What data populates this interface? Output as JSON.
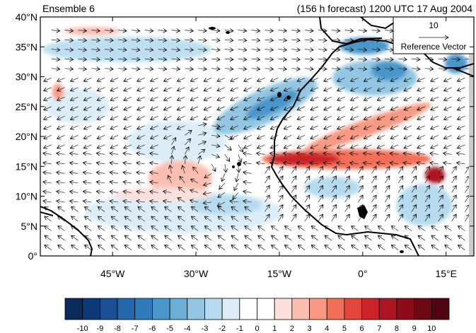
{
  "header": {
    "left_title": "Ensemble 6",
    "right_title": "(156 h forecast) 1200 UTC 17 Aug 2004"
  },
  "reference_vector": {
    "magnitude_label": "10",
    "caption": "Reference Vector"
  },
  "map": {
    "lon_range": [
      -58,
      20
    ],
    "lat_range": [
      0,
      40
    ],
    "lat_ticks": [
      {
        "value": 0,
        "label": "0°"
      },
      {
        "value": 5,
        "label": "5°N"
      },
      {
        "value": 10,
        "label": "10°N"
      },
      {
        "value": 15,
        "label": "15°N"
      },
      {
        "value": 20,
        "label": "20°N"
      },
      {
        "value": 25,
        "label": "25°N"
      },
      {
        "value": 30,
        "label": "30°N"
      },
      {
        "value": 35,
        "label": "35°N"
      },
      {
        "value": 40,
        "label": "40°N"
      }
    ],
    "lon_ticks": [
      {
        "value": -45,
        "label": "45°W"
      },
      {
        "value": -30,
        "label": "30°W"
      },
      {
        "value": -15,
        "label": "15°W"
      },
      {
        "value": 0,
        "label": "0°"
      },
      {
        "value": 15,
        "label": "15°E"
      }
    ],
    "features": [
      {
        "name": "warm-anomaly-saharan-band",
        "lon": -7,
        "lat": 17,
        "value": 8
      },
      {
        "name": "warm-anomaly-east-peak",
        "lon": 12,
        "lat": 14,
        "value": 10
      },
      {
        "name": "warm-anomaly-eastern-atlantic",
        "lon": -30,
        "lat": 15,
        "value": 6
      },
      {
        "name": "cold-anomaly-canary-region",
        "lon": -19,
        "lat": 27,
        "value": -6
      },
      {
        "name": "cold-anomaly-north-africa",
        "lon": -2,
        "lat": 32,
        "value": -5
      }
    ]
  },
  "colorbar": {
    "levels": [
      "-10",
      "-9",
      "-8",
      "-7",
      "-6",
      "-5",
      "-4",
      "-3",
      "-2",
      "-1",
      "0",
      "1",
      "2",
      "3",
      "4",
      "5",
      "6",
      "7",
      "8",
      "9",
      "10"
    ],
    "colors": [
      "#0a2a5a",
      "#0c3a78",
      "#1a4f93",
      "#2566ad",
      "#2f79bd",
      "#4a96cb",
      "#6aafd7",
      "#92c6e2",
      "#b6dbee",
      "#dcedf8",
      "#ffffff",
      "#ffffff",
      "#fde0dc",
      "#fbbfb1",
      "#f89a83",
      "#f26e57",
      "#e4453a",
      "#cc2229",
      "#ae1522",
      "#8c0c1a",
      "#6e0812",
      "#500510"
    ]
  }
}
